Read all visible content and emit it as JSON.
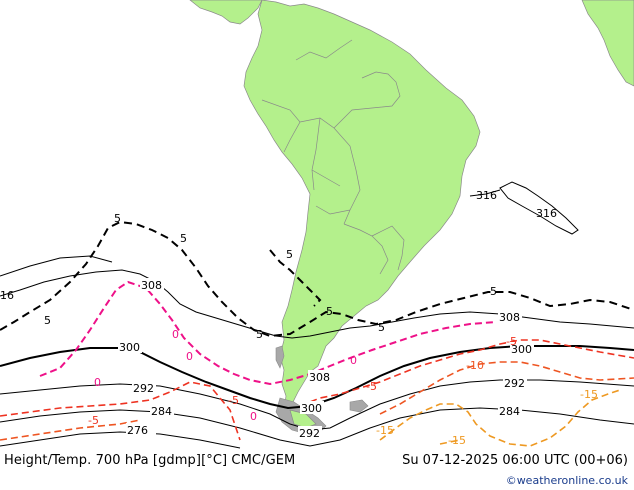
{
  "map": {
    "footer_title": "Height/Temp. 700 hPa [gdmp][°C] CMC/GEM",
    "valid_time": "Su 07-12-2025 06:00 UTC (00+06)",
    "credit": "©weatheronline.co.uk",
    "colors": {
      "land": "#b4f08c",
      "ocean": "#ffffff",
      "height_contour": "#000000",
      "temp_zero": "#ee1188",
      "temp_positive": "#000000",
      "temp_minus5": "#ee3322",
      "temp_minus10": "#ee5522",
      "temp_minus15": "#ee9922"
    },
    "height_labels": [
      "316",
      "316",
      "308",
      "308",
      "308",
      "300",
      "300",
      "300",
      "292",
      "292",
      "292",
      "284",
      "284",
      "276"
    ],
    "temp_labels": [
      "5",
      "5",
      "5",
      "5",
      "5",
      "5",
      "5",
      "5",
      "0",
      "0",
      "0",
      "0",
      "0",
      "-5",
      "-5",
      "-5",
      "-5",
      "-10",
      "-15",
      "-15",
      "-15",
      "16"
    ]
  }
}
